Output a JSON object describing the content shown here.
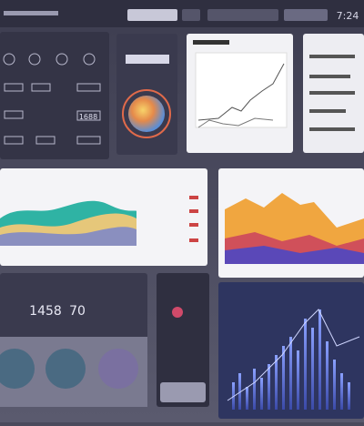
{
  "header": {
    "clock": "7:24"
  },
  "panels": {
    "metric_a": "1688",
    "metric_b": "1458",
    "metric_c": "70"
  }
}
